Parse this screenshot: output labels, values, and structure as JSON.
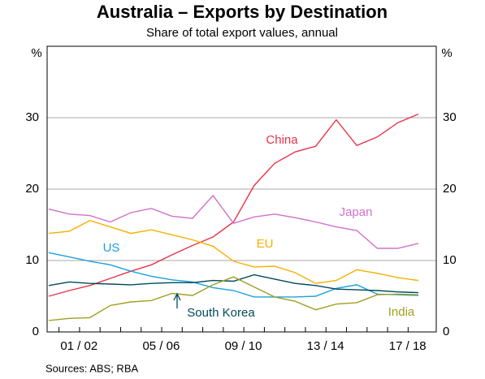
{
  "chart_data": {
    "type": "line",
    "title": "Australia – Exports by Destination",
    "subtitle": "Share of total export values, annual",
    "y_unit": "%",
    "source": "Sources:   ABS; RBA",
    "categories": [
      null,
      "01 / 02",
      null,
      null,
      null,
      "05 / 06",
      null,
      null,
      null,
      "09 / 10",
      null,
      null,
      null,
      "13 / 14",
      null,
      null,
      null,
      "17 / 18",
      null
    ],
    "ylim": [
      0,
      40
    ],
    "yticks": [
      0,
      10,
      20,
      30
    ],
    "grid": true,
    "series": [
      {
        "name": "China",
        "color": "#e8334a",
        "values": [
          5.0,
          5.8,
          6.5,
          7.5,
          8.5,
          9.4,
          10.8,
          12.1,
          13.3,
          15.4,
          20.5,
          23.6,
          25.2,
          26.0,
          29.7,
          26.1,
          27.3,
          29.3,
          30.5
        ]
      },
      {
        "name": "Japan",
        "color": "#d070cc",
        "values": [
          17.2,
          16.5,
          16.3,
          15.4,
          16.7,
          17.3,
          16.2,
          15.9,
          19.1,
          15.2,
          16.1,
          16.5,
          16.0,
          15.4,
          14.7,
          14.2,
          11.7,
          11.7,
          12.4
        ]
      },
      {
        "name": "EU",
        "color": "#f5b000",
        "values": [
          13.8,
          14.1,
          15.6,
          14.7,
          13.8,
          14.3,
          13.6,
          12.9,
          12.0,
          9.9,
          9.1,
          9.2,
          8.3,
          6.8,
          7.2,
          8.7,
          8.2,
          7.6,
          7.2
        ]
      },
      {
        "name": "US",
        "color": "#1aa0e0",
        "values": [
          11.1,
          10.5,
          9.9,
          9.4,
          8.5,
          7.8,
          7.3,
          7.0,
          6.2,
          5.8,
          4.9,
          4.9,
          4.9,
          5.0,
          6.1,
          6.6,
          5.3,
          5.2,
          5.1
        ]
      },
      {
        "name": "South Korea",
        "color": "#004a5a",
        "values": [
          6.5,
          7.0,
          6.8,
          6.7,
          6.6,
          6.8,
          6.9,
          6.9,
          7.2,
          7.1,
          8.0,
          7.4,
          6.8,
          6.5,
          6.0,
          5.9,
          5.8,
          5.6,
          5.5
        ]
      },
      {
        "name": "India",
        "color": "#a0a020",
        "values": [
          1.6,
          1.9,
          2.0,
          3.7,
          4.2,
          4.4,
          5.4,
          5.1,
          6.6,
          7.7,
          6.3,
          4.9,
          4.3,
          3.1,
          3.9,
          4.1,
          5.2,
          5.3,
          5.2
        ]
      }
    ]
  }
}
